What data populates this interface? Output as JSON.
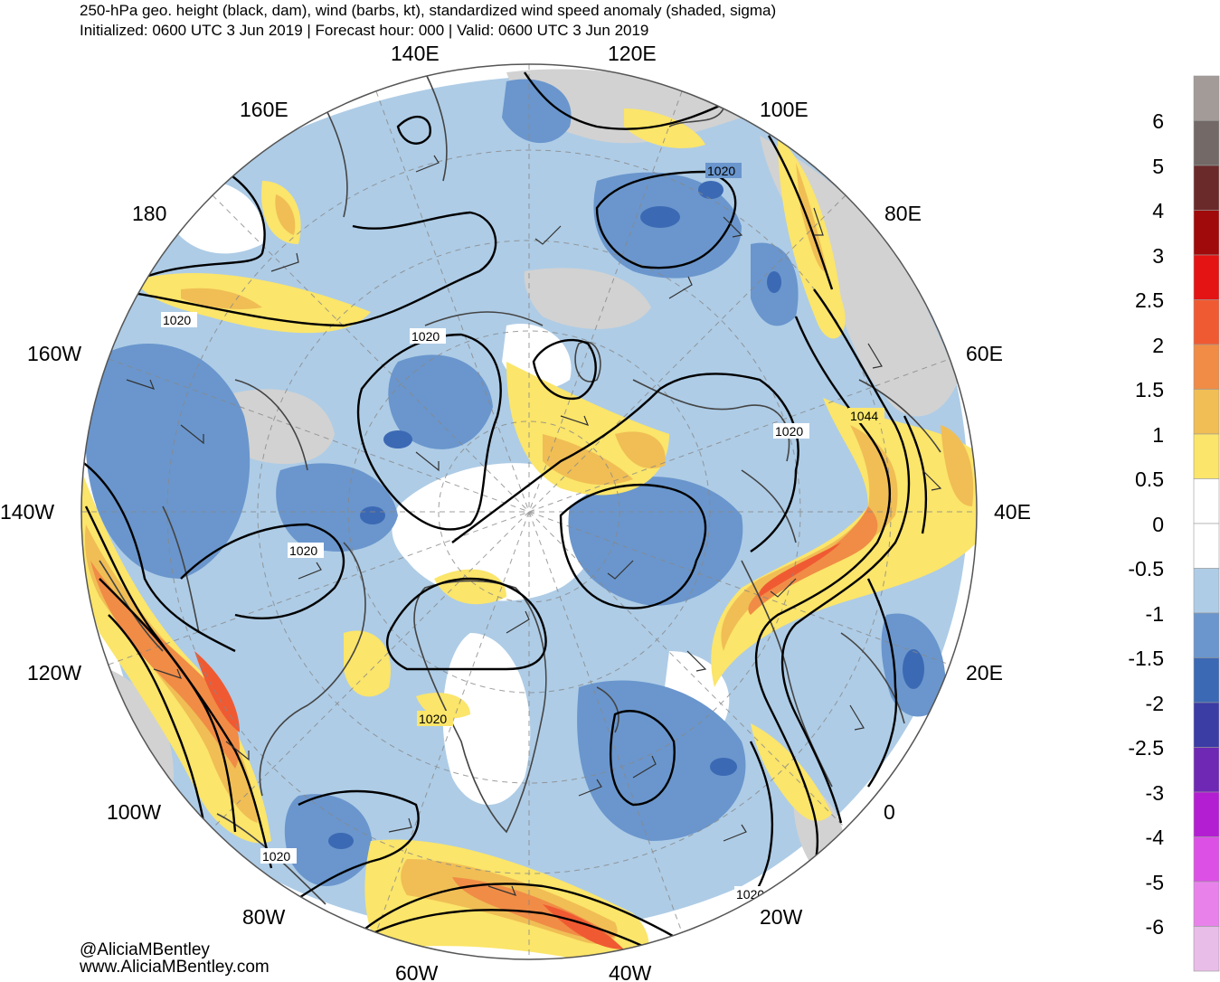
{
  "header": {
    "title": "250-hPa geo. height (black, dam), wind (barbs, kt), standardized wind speed anomaly (shaded, sigma)",
    "subtitle": "Initialized: 0600 UTC 3 Jun 2019 | Forecast hour: 000 | Valid: 0600 UTC 3 Jun 2019"
  },
  "map": {
    "projection": "north-polar-stereographic",
    "longitude_labels": [
      {
        "text": "140E",
        "lon": 140
      },
      {
        "text": "120E",
        "lon": 120
      },
      {
        "text": "160E",
        "lon": 160
      },
      {
        "text": "100E",
        "lon": 100
      },
      {
        "text": "180",
        "lon": 180
      },
      {
        "text": "80E",
        "lon": 80
      },
      {
        "text": "160W",
        "lon": -160
      },
      {
        "text": "60E",
        "lon": 60
      },
      {
        "text": "140W",
        "lon": -140
      },
      {
        "text": "40E",
        "lon": 40
      },
      {
        "text": "120W",
        "lon": -120
      },
      {
        "text": "20E",
        "lon": 20
      },
      {
        "text": "100W",
        "lon": -100
      },
      {
        "text": "0",
        "lon": 0
      },
      {
        "text": "80W",
        "lon": -80
      },
      {
        "text": "20W",
        "lon": -20
      },
      {
        "text": "60W",
        "lon": -60
      },
      {
        "text": "40W",
        "lon": -40
      }
    ],
    "contour_labels": [
      "1020",
      "1020",
      "1020",
      "1020",
      "1020",
      "1044",
      "1020",
      "1020",
      "1020"
    ],
    "colors": {
      "contour": "#000000",
      "land_outline": "#444444",
      "graticule": "#888888",
      "map_background": "#ffffff"
    }
  },
  "colorbar": {
    "labels": [
      "6",
      "5",
      "4",
      "3",
      "2.5",
      "2",
      "1.5",
      "1",
      "0.5",
      "0",
      "-0.5",
      "-1",
      "-1.5",
      "-2",
      "-2.5",
      "-3",
      "-4",
      "-5",
      "-6"
    ],
    "colors": [
      "#a29b98",
      "#736a68",
      "#6b2a2a",
      "#a00a0a",
      "#e51414",
      "#f05a32",
      "#f08c46",
      "#f0be55",
      "#fbe56a",
      "#ffffff",
      "#ffffff",
      "#aecce6",
      "#6a96cd",
      "#3c69b4",
      "#3c3ca5",
      "#6e28b4",
      "#b41ed2",
      "#dc50e6",
      "#e882ea",
      "#e8bde8"
    ]
  },
  "credits": {
    "handle": "@AliciaMBentley",
    "site": "www.AliciaMBentley.com"
  }
}
